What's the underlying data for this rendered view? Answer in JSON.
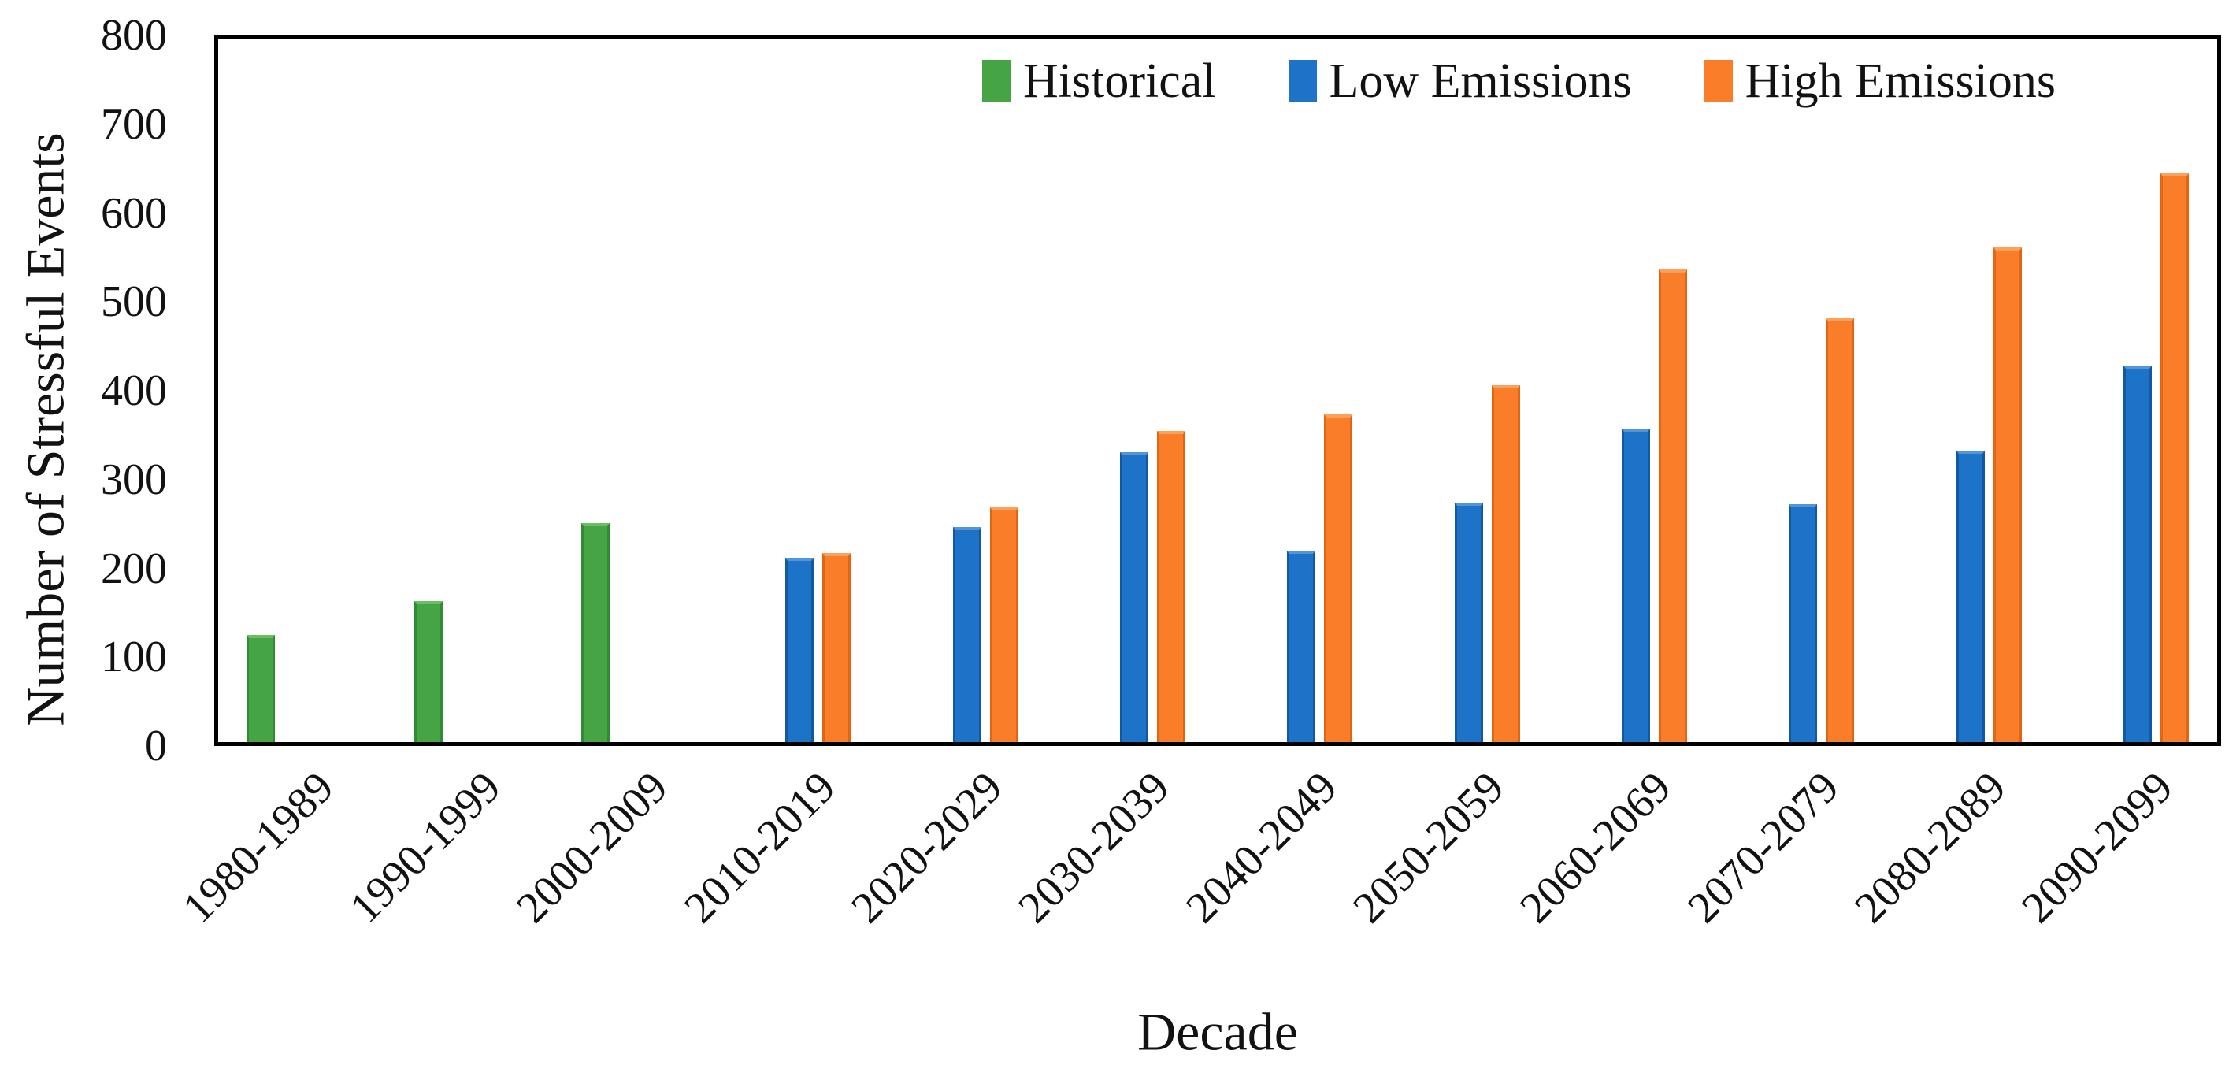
{
  "figure": {
    "background": "#ffffff",
    "text_color": "#121212",
    "frame_color": "#000000"
  },
  "chart_data": {
    "type": "bar",
    "title": "",
    "xlabel": "Decade",
    "ylabel": "Number of Stressful Events",
    "ylim": [
      0,
      800
    ],
    "ytick_step": 100,
    "grid": false,
    "legend_position": "top-inside",
    "categories": [
      "1980-1989",
      "1990-1999",
      "2000-2009",
      "2010-2019",
      "2020-2029",
      "2030-2039",
      "2040-2049",
      "2050-2059",
      "2060-2069",
      "2070-2079",
      "2080-2089",
      "2090-2099"
    ],
    "series": [
      {
        "name": "Historical",
        "color": "#45a545",
        "cap_color": "#6abf62",
        "edge_color": "#338a33",
        "values": [
          125,
          163,
          251,
          null,
          null,
          null,
          null,
          null,
          null,
          null,
          null,
          null
        ]
      },
      {
        "name": "Low Emissions",
        "color": "#1d73c8",
        "cap_color": "#5395d6",
        "edge_color": "#1159a3",
        "values": [
          null,
          null,
          null,
          212,
          247,
          331,
          220,
          274,
          357,
          272,
          333,
          428
        ]
      },
      {
        "name": "High Emissions",
        "color": "#fa7d2a",
        "cap_color": "#fca15c",
        "edge_color": "#e26612",
        "values": [
          null,
          null,
          null,
          217,
          269,
          355,
          373,
          406,
          537,
          482,
          561,
          645
        ]
      }
    ]
  }
}
